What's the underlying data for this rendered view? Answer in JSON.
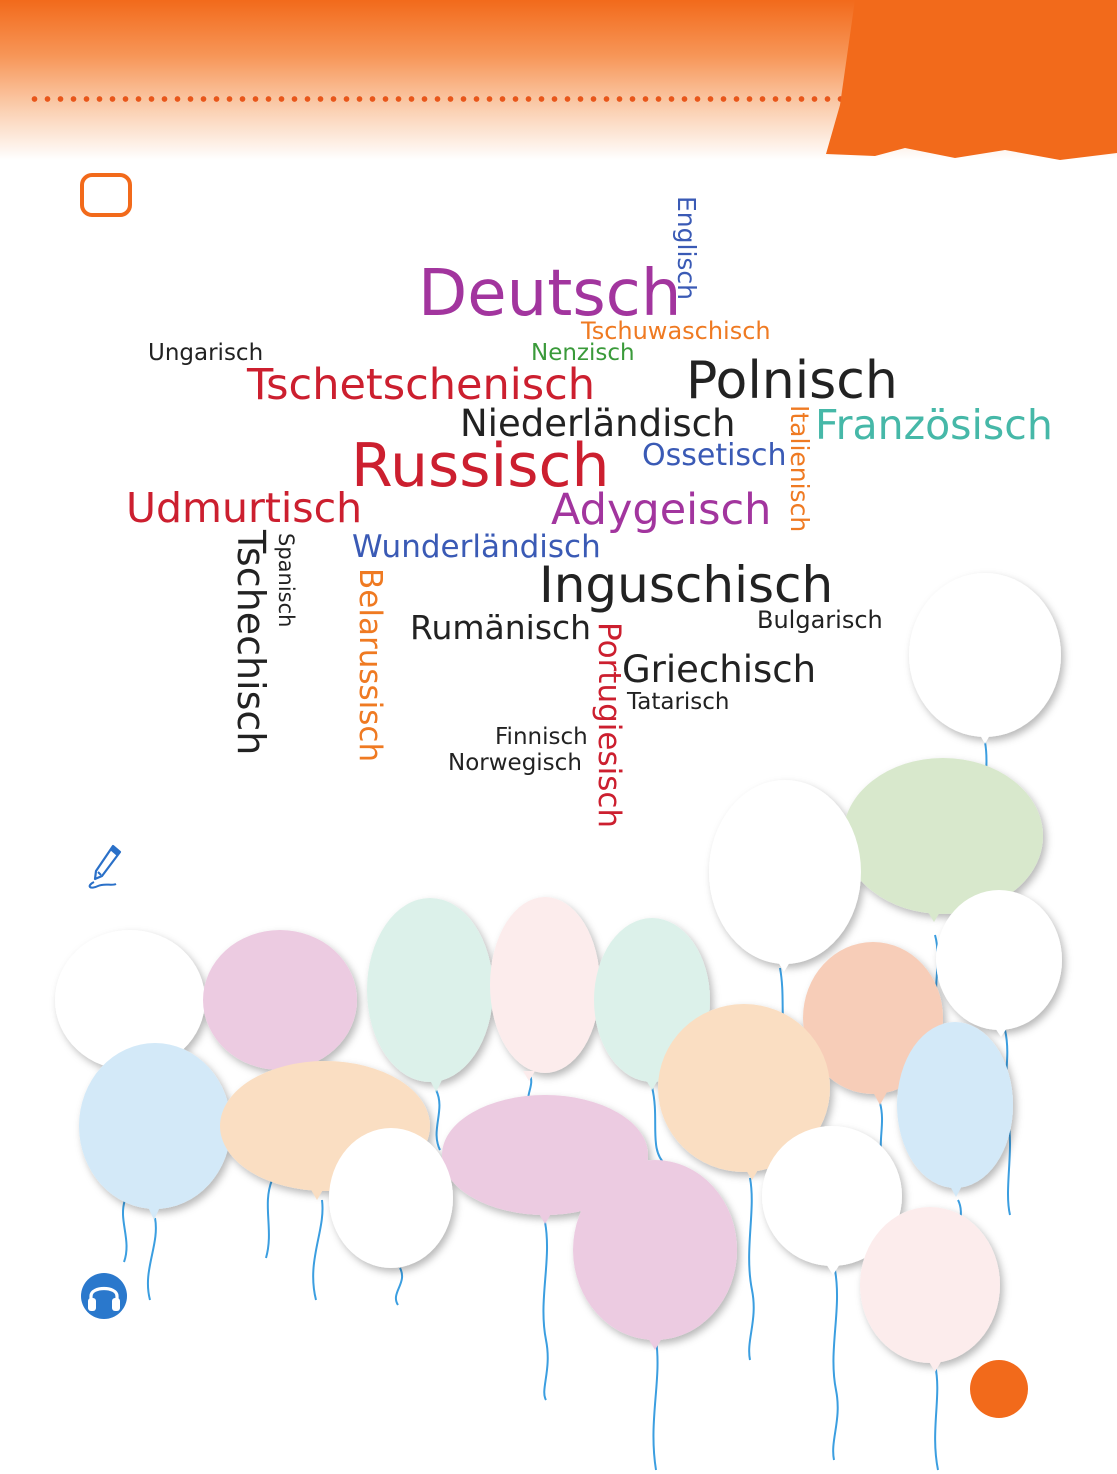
{
  "colors": {
    "accent": "#f26a1b",
    "red": "#cc1f2f",
    "purple": "#a2359e",
    "blue": "#3a5ab5",
    "orange": "#ef7a22",
    "green": "#3a9a3a",
    "teal": "#46b8a8",
    "black": "#222222",
    "string": "#3b9ee0"
  },
  "icons": [
    "pencil-icon",
    "headphones-icon"
  ],
  "word_cloud": {
    "deutsch": "Deutsch",
    "englisch": "Englisch",
    "tschuwaschisch": "Tschuwaschisch",
    "ungarisch": "Ungarisch",
    "nenzisch": "Nenzisch",
    "tschetschenisch": "Tschetschenisch",
    "polnisch": "Polnisch",
    "niederlaendisch": "Niederländisch",
    "italienisch": "Italienisch",
    "franzoesisch": "Französisch",
    "russisch": "Russisch",
    "ossetisch": "Ossetisch",
    "udmurtisch": "Udmurtisch",
    "adygeisch": "Adygeisch",
    "spanisch": "Spanisch",
    "tschechisch": "Tschechisch",
    "wunderlaendisch": "Wunderländisch",
    "inguschisch": "Inguschisch",
    "belarussisch": "Belarussisch",
    "rumaenisch": "Rumänisch",
    "portugiesisch": "Portugiesisch",
    "bulgarisch": "Bulgarisch",
    "griechisch": "Griechisch",
    "tatarisch": "Tatarisch",
    "finnisch": "Finnisch",
    "norwegisch": "Norwegisch"
  },
  "balloon_colors": [
    "#ffffff",
    "#eccbe1",
    "#dcf1ea",
    "#fcecec",
    "#d3e9f8",
    "#fadec2",
    "#d8e8cc",
    "#f7cdb8"
  ]
}
